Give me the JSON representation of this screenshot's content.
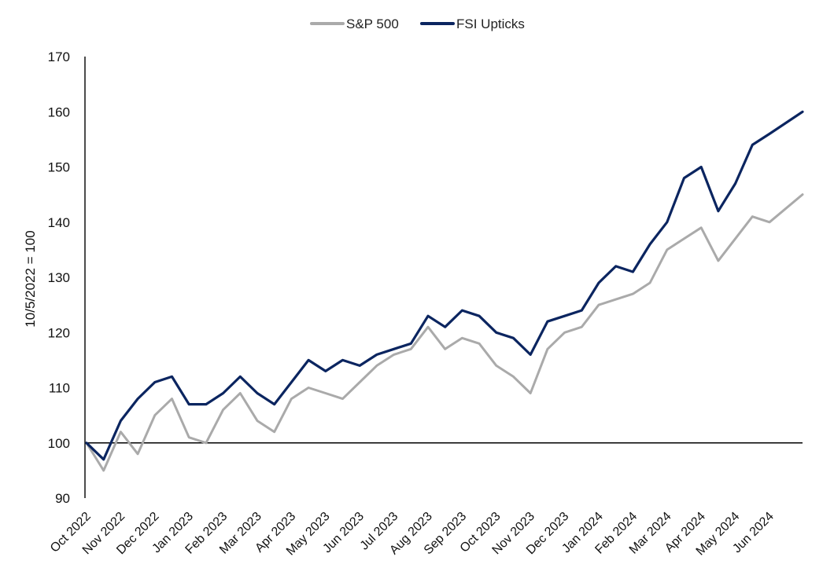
{
  "chart_data": {
    "type": "line",
    "ylabel": "10/5/2022 = 100",
    "xlabel": "",
    "ylim": [
      90,
      170
    ],
    "yticks": [
      90,
      100,
      110,
      120,
      130,
      140,
      150,
      160,
      170
    ],
    "baseline": 100,
    "legend_position": "top-center",
    "x_tick_labels": [
      "Oct 2022",
      "Nov 2022",
      "Dec 2022",
      "Jan 2023",
      "Feb 2023",
      "Mar 2023",
      "Apr 2023",
      "May 2023",
      "Jun 2023",
      "Jul 2023",
      "Aug 2023",
      "Sep 2023",
      "Oct 2023",
      "Nov 2023",
      "Dec 2023",
      "Jan 2024",
      "Feb 2024",
      "Mar 2024",
      "Apr 2024",
      "May 2024",
      "Jun 2024"
    ],
    "x": [
      "Oct 2022",
      "Oct 2022",
      "Nov 2022",
      "Nov 2022",
      "Dec 2022",
      "Dec 2022",
      "Jan 2023",
      "Jan 2023",
      "Feb 2023",
      "Feb 2023",
      "Mar 2023",
      "Mar 2023",
      "Apr 2023",
      "Apr 2023",
      "May 2023",
      "May 2023",
      "Jun 2023",
      "Jun 2023",
      "Jul 2023",
      "Jul 2023",
      "Aug 2023",
      "Aug 2023",
      "Sep 2023",
      "Sep 2023",
      "Oct 2023",
      "Oct 2023",
      "Nov 2023",
      "Nov 2023",
      "Dec 2023",
      "Dec 2023",
      "Jan 2024",
      "Jan 2024",
      "Feb 2024",
      "Feb 2024",
      "Mar 2024",
      "Mar 2024",
      "Apr 2024",
      "Apr 2024",
      "May 2024",
      "May 2024",
      "Jun 2024",
      "Jun 2024"
    ],
    "series": [
      {
        "name": "S&P 500",
        "color": "#aaaaaa",
        "values": [
          100,
          95,
          102,
          98,
          105,
          108,
          101,
          100,
          106,
          109,
          104,
          102,
          108,
          110,
          109,
          108,
          111,
          114,
          116,
          117,
          121,
          117,
          119,
          118,
          114,
          112,
          109,
          117,
          120,
          121,
          125,
          126,
          127,
          129,
          135,
          137,
          139,
          133,
          137,
          141,
          140,
          145
        ]
      },
      {
        "name": "FSI Upticks",
        "color": "#0b2560",
        "values": [
          100,
          97,
          104,
          108,
          111,
          112,
          107,
          107,
          109,
          112,
          109,
          107,
          111,
          115,
          113,
          115,
          114,
          116,
          117,
          118,
          123,
          121,
          124,
          123,
          120,
          119,
          116,
          122,
          123,
          124,
          129,
          132,
          131,
          136,
          140,
          148,
          150,
          142,
          147,
          154,
          156,
          160
        ]
      }
    ]
  }
}
